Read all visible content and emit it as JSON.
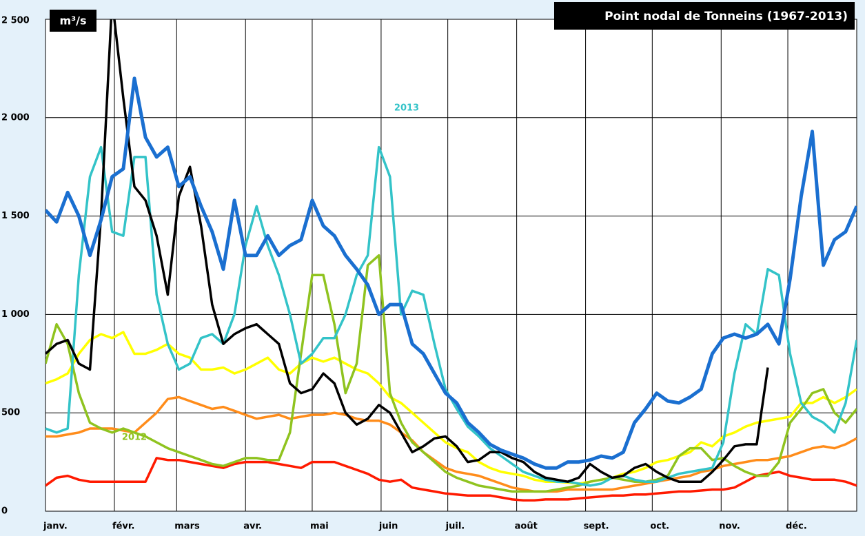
{
  "chart_data": {
    "type": "line",
    "title": "Point nodal de Tonneins (1967-2013)",
    "y_label": "m³/s",
    "annotations": [
      {
        "text": "2013",
        "color": "#33c3c8"
      },
      {
        "text": "2012",
        "color": "#8fc31f"
      }
    ],
    "x": [
      0,
      5,
      10,
      15,
      20,
      25,
      30,
      35,
      40,
      45,
      50,
      55,
      60,
      65,
      70,
      75,
      80,
      85,
      90,
      95,
      100,
      105,
      110,
      115,
      120,
      125,
      130,
      135,
      140,
      145,
      150,
      155,
      160,
      165,
      170,
      175,
      180,
      185,
      190,
      195,
      200,
      205,
      210,
      215,
      220,
      225,
      230,
      235,
      240,
      245,
      250,
      255,
      260,
      265,
      270,
      275,
      280,
      285,
      290,
      295,
      300,
      305,
      310,
      315,
      320,
      325,
      330,
      335,
      340,
      345,
      350,
      355,
      360,
      365
    ],
    "xlim": [
      0,
      365
    ],
    "xticks": [
      {
        "value": 0,
        "label": "janv."
      },
      {
        "value": 31,
        "label": "févr."
      },
      {
        "value": 59,
        "label": "mars"
      },
      {
        "value": 90,
        "label": "avr."
      },
      {
        "value": 120,
        "label": "mai"
      },
      {
        "value": 151,
        "label": "juin"
      },
      {
        "value": 181,
        "label": "juil."
      },
      {
        "value": 212,
        "label": "août"
      },
      {
        "value": 243,
        "label": "sept."
      },
      {
        "value": 273,
        "label": "oct."
      },
      {
        "value": 304,
        "label": "nov."
      },
      {
        "value": 334,
        "label": "déc."
      }
    ],
    "ylim": [
      0,
      2500
    ],
    "yticks": [
      0,
      500,
      {
        "value": 1000,
        "label": "1 000"
      },
      {
        "value": 1500,
        "label": "1 500"
      },
      {
        "value": 2000,
        "label": "2 000"
      },
      {
        "value": 2500,
        "label": "2 500"
      }
    ],
    "grid": true,
    "series": [
      {
        "color": "#ff1a00",
        "values": [
          130,
          170,
          180,
          160,
          150,
          150,
          150,
          150,
          150,
          150,
          270,
          260,
          260,
          250,
          240,
          230,
          220,
          240,
          250,
          250,
          250,
          240,
          230,
          220,
          250,
          250,
          250,
          230,
          210,
          190,
          160,
          150,
          160,
          120,
          110,
          100,
          90,
          85,
          80,
          80,
          80,
          70,
          60,
          55,
          55,
          60,
          60,
          60,
          65,
          70,
          75,
          80,
          80,
          85,
          85,
          90,
          95,
          100,
          100,
          105,
          110,
          110,
          120,
          150,
          180,
          190,
          200,
          180,
          170,
          160,
          160,
          160,
          150,
          130
        ]
      },
      {
        "color": "#ff8c1a",
        "values": [
          380,
          380,
          390,
          400,
          420,
          420,
          420,
          410,
          400,
          450,
          500,
          570,
          580,
          560,
          540,
          520,
          530,
          510,
          490,
          470,
          480,
          490,
          470,
          480,
          490,
          490,
          500,
          490,
          470,
          460,
          460,
          440,
          400,
          360,
          300,
          260,
          220,
          200,
          190,
          180,
          160,
          140,
          120,
          110,
          100,
          100,
          100,
          110,
          110,
          110,
          110,
          110,
          120,
          130,
          140,
          150,
          160,
          170,
          180,
          200,
          210,
          230,
          240,
          250,
          260,
          260,
          270,
          280,
          300,
          320,
          330,
          320,
          340,
          370
        ]
      },
      {
        "color": "#ffff00",
        "values": [
          650,
          670,
          700,
          800,
          870,
          900,
          880,
          910,
          800,
          800,
          820,
          850,
          800,
          780,
          720,
          720,
          730,
          700,
          720,
          750,
          780,
          720,
          700,
          750,
          780,
          760,
          780,
          750,
          720,
          700,
          650,
          580,
          550,
          500,
          450,
          400,
          350,
          320,
          300,
          250,
          220,
          200,
          190,
          180,
          160,
          150,
          150,
          145,
          140,
          150,
          160,
          170,
          190,
          200,
          220,
          250,
          260,
          280,
          300,
          350,
          330,
          380,
          400,
          430,
          450,
          460,
          470,
          480,
          550,
          550,
          580,
          550,
          580,
          620
        ]
      },
      {
        "color": "#8fc31f",
        "values": [
          750,
          950,
          850,
          600,
          450,
          420,
          400,
          420,
          400,
          380,
          350,
          320,
          300,
          280,
          260,
          240,
          230,
          250,
          270,
          270,
          260,
          260,
          400,
          800,
          1200,
          1200,
          950,
          600,
          750,
          1250,
          1300,
          600,
          450,
          350,
          300,
          250,
          200,
          170,
          150,
          130,
          120,
          110,
          100,
          100,
          100,
          100,
          110,
          120,
          130,
          150,
          160,
          170,
          160,
          150,
          150,
          160,
          180,
          280,
          320,
          320,
          260,
          270,
          230,
          200,
          180,
          180,
          250,
          450,
          520,
          600,
          620,
          500,
          450,
          520
        ]
      },
      {
        "color": "#33c3c8",
        "values": [
          420,
          400,
          420,
          1200,
          1700,
          1850,
          1420,
          1400,
          1800,
          1800,
          1100,
          850,
          720,
          750,
          880,
          900,
          850,
          1000,
          1350,
          1550,
          1350,
          1200,
          1000,
          750,
          800,
          880,
          880,
          1000,
          1200,
          1300,
          1850,
          1700,
          1000,
          1120,
          1100,
          850,
          620,
          520,
          430,
          380,
          320,
          280,
          240,
          200,
          180,
          160,
          150,
          150,
          140,
          130,
          140,
          170,
          180,
          160,
          150,
          150,
          170,
          190,
          200,
          210,
          220,
          350,
          700,
          950,
          900,
          1230,
          1200,
          800,
          550,
          480,
          450,
          400,
          550,
          870
        ]
      },
      {
        "color": "#000000",
        "values": [
          800,
          850,
          870,
          750,
          720,
          1500,
          2600,
          2100,
          1650,
          1580,
          1400,
          1100,
          1600,
          1750,
          1450,
          1050,
          850,
          900,
          930,
          950,
          900,
          850,
          650,
          600,
          620,
          700,
          650,
          500,
          440,
          470,
          540,
          500,
          400,
          300,
          330,
          370,
          380,
          330,
          250,
          260,
          300,
          300,
          270,
          250,
          200,
          170,
          160,
          150,
          170,
          240,
          200,
          170,
          180,
          220,
          240,
          200,
          170,
          150,
          150,
          150,
          200,
          260,
          330,
          340,
          340,
          730,
          null,
          null,
          null,
          null,
          null,
          null,
          null,
          null
        ]
      },
      {
        "color": "#1a6fd0",
        "values": [
          1530,
          1470,
          1620,
          1500,
          1300,
          1480,
          1700,
          1740,
          2200,
          1900,
          1800,
          1850,
          1650,
          1700,
          1550,
          1420,
          1230,
          1580,
          1300,
          1300,
          1400,
          1300,
          1350,
          1380,
          1580,
          1450,
          1400,
          1300,
          1230,
          1150,
          1000,
          1050,
          1050,
          850,
          800,
          700,
          600,
          550,
          450,
          400,
          340,
          310,
          290,
          270,
          240,
          220,
          220,
          250,
          250,
          260,
          280,
          270,
          300,
          450,
          520,
          600,
          560,
          550,
          580,
          620,
          800,
          880,
          900,
          880,
          900,
          950,
          850,
          1180,
          1600,
          1930,
          1250,
          1380,
          1420,
          1550
        ]
      }
    ]
  }
}
